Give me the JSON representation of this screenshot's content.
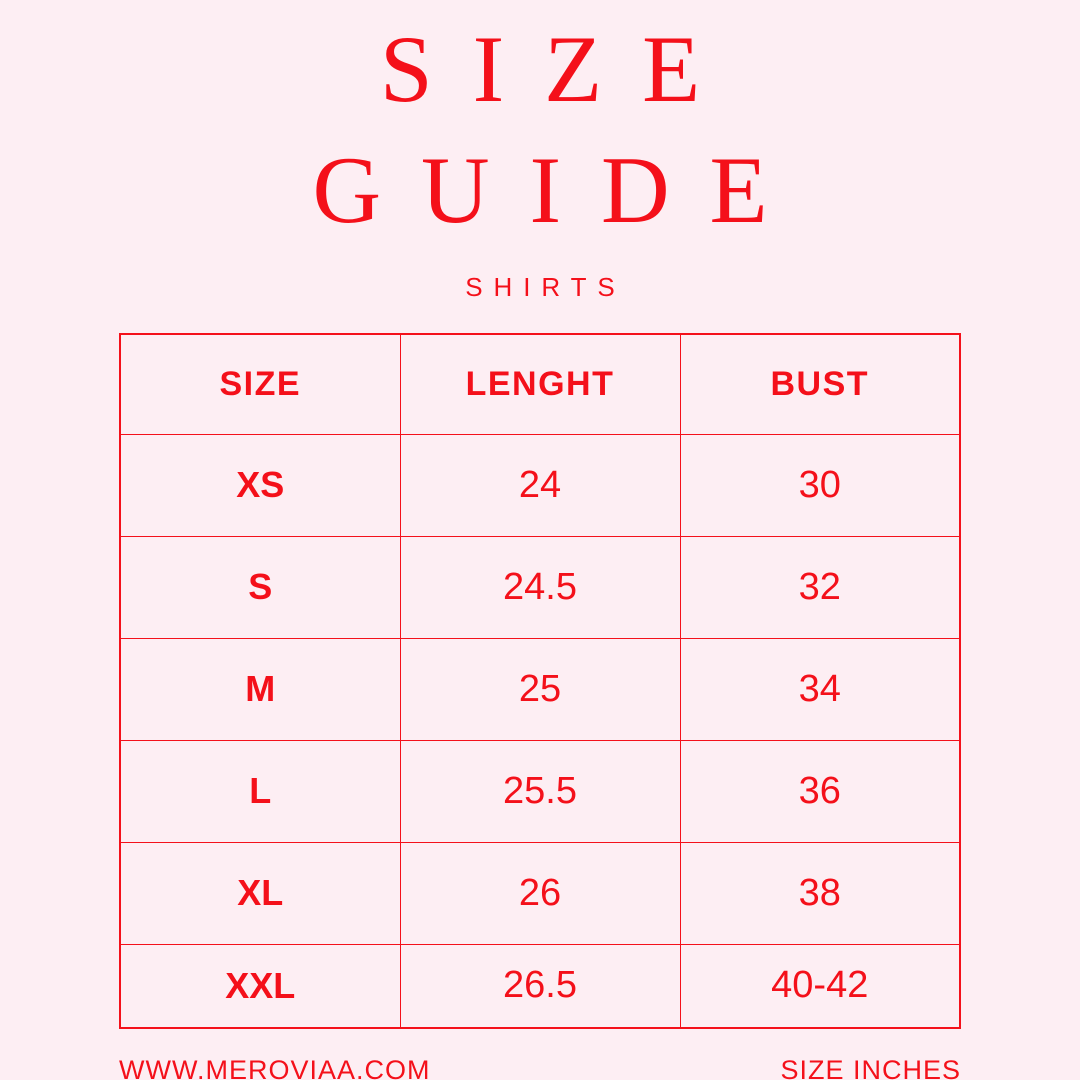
{
  "colors": {
    "background": "#fdeef3",
    "accent": "#f4101a"
  },
  "header": {
    "title_line1": "SIZE",
    "title_line2": "GUIDE",
    "subtitle": "SHIRTS"
  },
  "table": {
    "columns": [
      "SIZE",
      "LENGHT",
      "BUST"
    ],
    "rows": [
      {
        "size": "XS",
        "length": "24",
        "bust": "30"
      },
      {
        "size": "S",
        "length": "24.5",
        "bust": "32"
      },
      {
        "size": "M",
        "length": "25",
        "bust": "34"
      },
      {
        "size": "L",
        "length": "25.5",
        "bust": "36"
      },
      {
        "size": "XL",
        "length": "26",
        "bust": "38"
      },
      {
        "size": "XXL",
        "length": "26.5",
        "bust": "40-42"
      }
    ]
  },
  "footer": {
    "website": "WWW.MEROVIAA.COM",
    "units": "SIZE INCHES"
  }
}
